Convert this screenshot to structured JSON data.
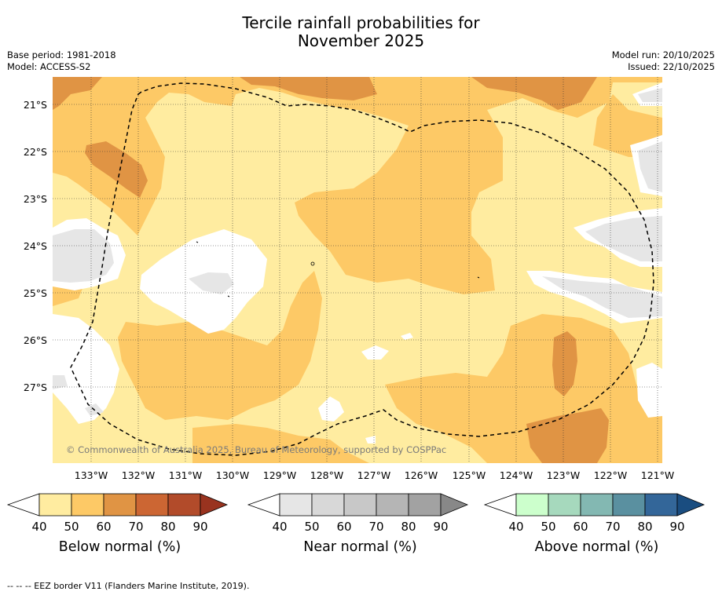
{
  "header": {
    "title_line1": "Tercile rainfall probabilities for",
    "title_line2": "November 2025",
    "base_period": "Base period: 1981-2018",
    "model": "Model: ACCESS-S2",
    "model_run": "Model run: 20/10/2025",
    "issued": "Issued: 22/10/2025"
  },
  "map": {
    "lat_labels": [
      "21°S",
      "22°S",
      "23°S",
      "24°S",
      "25°S",
      "26°S",
      "27°S"
    ],
    "lon_labels": [
      "133°W",
      "132°W",
      "131°W",
      "130°W",
      "129°W",
      "128°W",
      "127°W",
      "126°W",
      "125°W",
      "124°W",
      "123°W",
      "122°W",
      "121°W"
    ],
    "copyright": "© Commonwealth of Australia 2025, Bureau of Meteorology, supported by COSPPac",
    "border_note": "--  --  -- EEZ border V11 (Flanders Marine Institute, 2019)."
  },
  "legends": [
    {
      "title": "Below normal (%)",
      "ticks": [
        "40",
        "50",
        "60",
        "70",
        "80",
        "90"
      ],
      "colors": [
        "#ffeca0",
        "#fdc966",
        "#e09444",
        "#cc6633",
        "#b24b2a",
        "#99331f"
      ]
    },
    {
      "title": "Near normal (%)",
      "ticks": [
        "40",
        "50",
        "60",
        "70",
        "80",
        "90"
      ],
      "colors": [
        "#e6e6e6",
        "#d8d8d8",
        "#c8c8c8",
        "#b5b5b5",
        "#a2a2a2",
        "#888888"
      ]
    },
    {
      "title": "Above normal (%)",
      "ticks": [
        "40",
        "50",
        "60",
        "70",
        "80",
        "90"
      ],
      "colors": [
        "#ccffcc",
        "#a6d9bd",
        "#83b8b2",
        "#5a90a0",
        "#336699",
        "#1a4d80"
      ]
    }
  ],
  "colors": {
    "below_40": "#ffeca0",
    "below_50": "#fdc966",
    "below_60": "#e09444",
    "near_40": "#e6e6e6",
    "background": "#ffffff"
  }
}
